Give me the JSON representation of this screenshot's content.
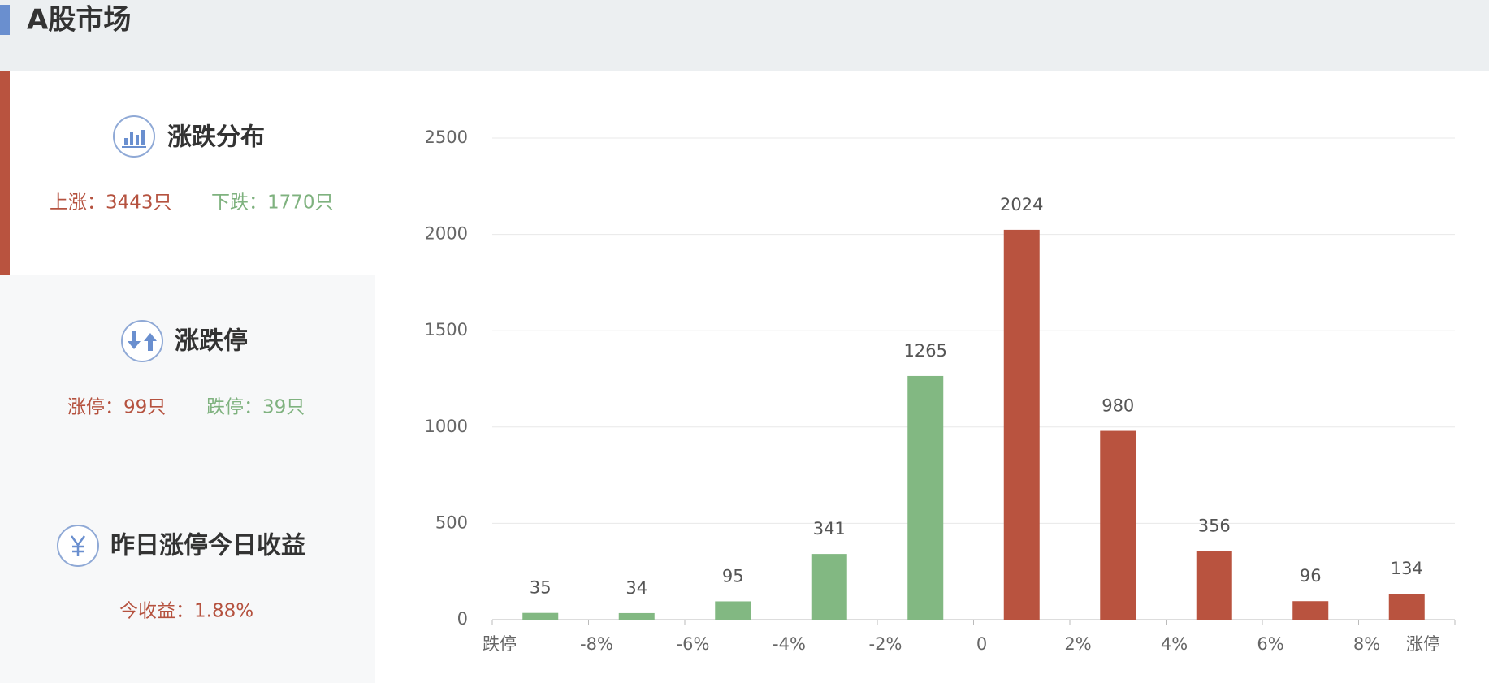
{
  "header": {
    "title": "A股市场"
  },
  "panels": [
    {
      "title": "涨跌分布",
      "stats": [
        "上涨：3443只",
        "下跌：1770只"
      ]
    },
    {
      "title": "涨跌停",
      "stats": [
        "涨停：99只",
        "跌停：39只"
      ]
    },
    {
      "title": "昨日涨停今日收益",
      "stats": [
        "今收益：1.88%"
      ]
    }
  ],
  "chart_data": {
    "type": "bar",
    "values": [
      35,
      34,
      95,
      341,
      1265,
      2024,
      980,
      356,
      96,
      134
    ],
    "colors": [
      "#82b882",
      "#82b882",
      "#82b882",
      "#82b882",
      "#82b882",
      "#b9533f",
      "#b9533f",
      "#b9533f",
      "#b9533f",
      "#b9533f"
    ],
    "xtick_labels": [
      "跌停",
      "-8%",
      "-6%",
      "-4%",
      "-2%",
      "0",
      "2%",
      "4%",
      "6%",
      "8%",
      "涨停"
    ],
    "ylim": [
      0,
      2500
    ],
    "yticks": [
      0,
      500,
      1000,
      1500,
      2000,
      2500
    ],
    "grid": true
  }
}
